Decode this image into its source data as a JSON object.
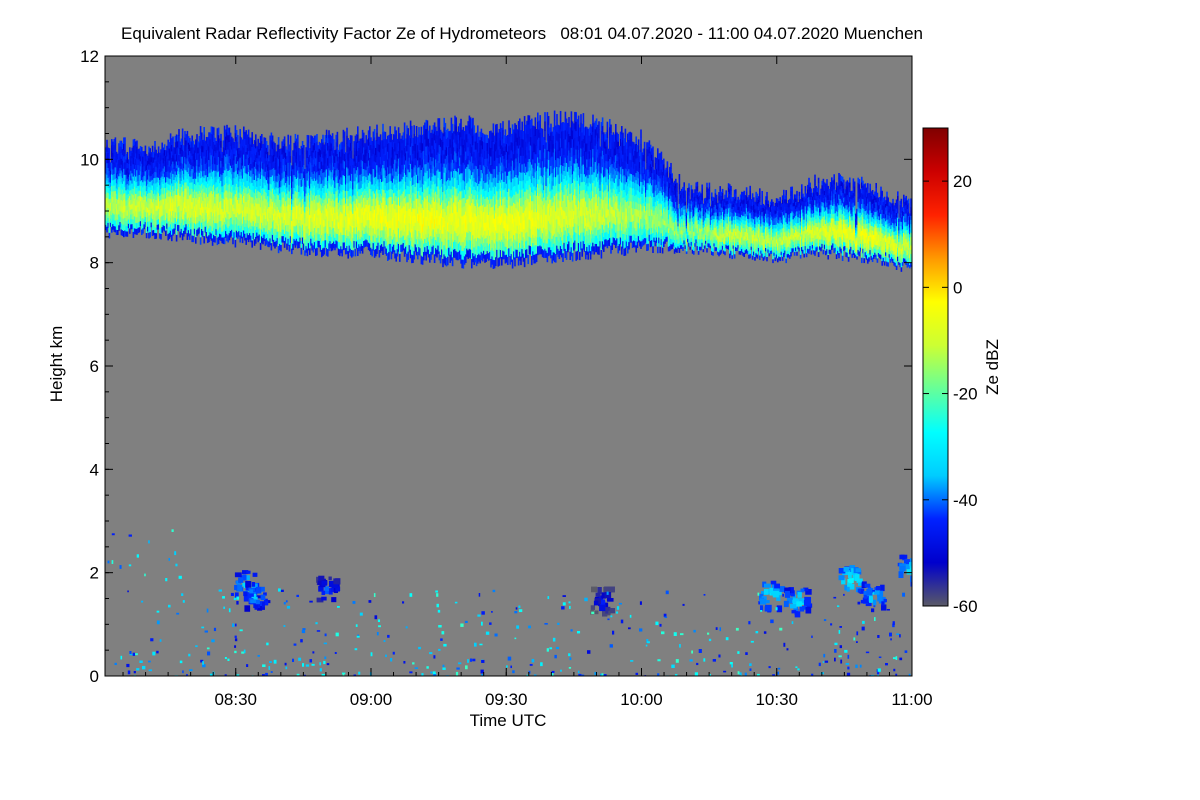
{
  "chart_data": {
    "type": "heatmap",
    "title": "Equivalent Radar Reflectivity Factor Ze of Hydrometeors   08:01 04.07.2020 - 11:00 04.07.2020 Muenchen",
    "xlabel": "Time UTC",
    "ylabel": "Height km",
    "colorbar_label": "Ze dBZ",
    "x_range_minutes": [
      481,
      660
    ],
    "x_ticks": [
      {
        "value": 510,
        "label": "08:30"
      },
      {
        "value": 540,
        "label": "09:00"
      },
      {
        "value": 570,
        "label": "09:30"
      },
      {
        "value": 600,
        "label": "10:00"
      },
      {
        "value": 630,
        "label": "10:30"
      },
      {
        "value": 660,
        "label": "11:00"
      }
    ],
    "ylim": [
      0,
      12
    ],
    "y_ticks": [
      {
        "value": 0,
        "label": "0"
      },
      {
        "value": 2,
        "label": "2"
      },
      {
        "value": 4,
        "label": "4"
      },
      {
        "value": 6,
        "label": "6"
      },
      {
        "value": 8,
        "label": "8"
      },
      {
        "value": 10,
        "label": "10"
      },
      {
        "value": 12,
        "label": "12"
      }
    ],
    "colorbar_range": [
      -60,
      30
    ],
    "colorbar_ticks": [
      {
        "value": 20,
        "label": "20"
      },
      {
        "value": 0,
        "label": "0"
      },
      {
        "value": -20,
        "label": "-20"
      },
      {
        "value": -40,
        "label": "-40"
      },
      {
        "value": -60,
        "label": "-60"
      }
    ],
    "colormap": [
      "#5a5a66",
      "#0000cc",
      "#0022ff",
      "#00ccff",
      "#00ffff",
      "#66ff99",
      "#ccff33",
      "#ffff00",
      "#ff9900",
      "#ff2200",
      "#cc0000",
      "#800000"
    ],
    "background_color": "#808080",
    "cloud_layers": [
      {
        "name": "upper-cloud-layer",
        "profile": [
          {
            "t": 481,
            "base": 8.6,
            "top": 10.3,
            "core": -12
          },
          {
            "t": 490,
            "base": 8.6,
            "top": 10.2,
            "core": -10
          },
          {
            "t": 500,
            "base": 8.5,
            "top": 10.5,
            "core": -8
          },
          {
            "t": 510,
            "base": 8.4,
            "top": 10.5,
            "core": -10
          },
          {
            "t": 520,
            "base": 8.3,
            "top": 10.3,
            "core": -8
          },
          {
            "t": 530,
            "base": 8.2,
            "top": 10.4,
            "core": -7
          },
          {
            "t": 540,
            "base": 8.2,
            "top": 10.5,
            "core": -6
          },
          {
            "t": 550,
            "base": 8.1,
            "top": 10.6,
            "core": -5
          },
          {
            "t": 560,
            "base": 8.0,
            "top": 10.7,
            "core": -6
          },
          {
            "t": 570,
            "base": 8.0,
            "top": 10.6,
            "core": -5
          },
          {
            "t": 580,
            "base": 8.1,
            "top": 10.8,
            "core": -8
          },
          {
            "t": 590,
            "base": 8.2,
            "top": 10.7,
            "core": -10
          },
          {
            "t": 600,
            "base": 8.3,
            "top": 10.4,
            "core": -14
          },
          {
            "t": 610,
            "base": 8.3,
            "top": 9.4,
            "core": -16
          },
          {
            "t": 620,
            "base": 8.2,
            "top": 9.4,
            "core": -10
          },
          {
            "t": 630,
            "base": 8.1,
            "top": 9.2,
            "core": -12
          },
          {
            "t": 640,
            "base": 8.2,
            "top": 9.6,
            "core": -8
          },
          {
            "t": 650,
            "base": 8.1,
            "top": 9.5,
            "core": -5
          },
          {
            "t": 660,
            "base": 7.9,
            "top": 9.1,
            "core": -10
          }
        ]
      }
    ],
    "low_echoes": [
      {
        "t": 512,
        "h": 1.8,
        "core": -30
      },
      {
        "t": 514,
        "h": 1.6,
        "core": -34
      },
      {
        "t": 530,
        "h": 1.7,
        "core": -40
      },
      {
        "t": 591,
        "h": 1.5,
        "core": -44
      },
      {
        "t": 628,
        "h": 1.6,
        "core": -28
      },
      {
        "t": 634,
        "h": 1.5,
        "core": -30
      },
      {
        "t": 646,
        "h": 1.9,
        "core": -26
      },
      {
        "t": 651,
        "h": 1.6,
        "core": -32
      },
      {
        "t": 659,
        "h": 2.1,
        "core": -30
      }
    ]
  }
}
